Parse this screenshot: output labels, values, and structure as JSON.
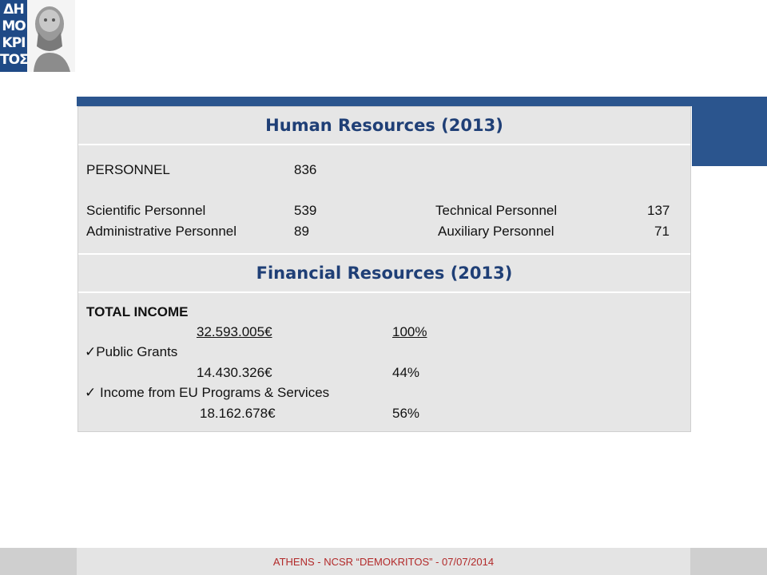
{
  "logo": {
    "letters": [
      "ΔΗ",
      "ΜΟ",
      "ΚΡΙ",
      "ΤΟΣ"
    ],
    "icon": "democritus-bust-icon",
    "brand_color": "#1f4a86"
  },
  "human_resources": {
    "title": "Human Resources (2013)",
    "personnel_label": "PERSONNEL",
    "personnel_value": "836",
    "scientific_label": "Scientific Personnel",
    "scientific_value": "539",
    "administrative_label": "Administrative Personnel",
    "administrative_value": "89",
    "technical_label": "Technical Personnel",
    "technical_value": "137",
    "auxiliary_label": "Auxiliary Personnel",
    "auxiliary_value": "71"
  },
  "financial_resources": {
    "title": "Financial Resources (2013)",
    "total_label": "TOTAL INCOME",
    "total_amount": "32.593.005€",
    "total_percent": "100%",
    "check_icon": "✓",
    "grants_label": "Public Grants",
    "grants_amount": "14.430.326€",
    "grants_percent": "44%",
    "eu_label": " Income from EU Programs & Services",
    "eu_amount": "18.162.678€",
    "eu_percent": "56%"
  },
  "footer": {
    "text": "ATHENS - NCSR “DEMOKRITOS” - 07/07/2014"
  },
  "colors": {
    "accent_blue": "#2b558e",
    "header_text": "#1f3f76",
    "panel_bg": "#e6e6e6",
    "footer_text": "#b22a2a"
  }
}
